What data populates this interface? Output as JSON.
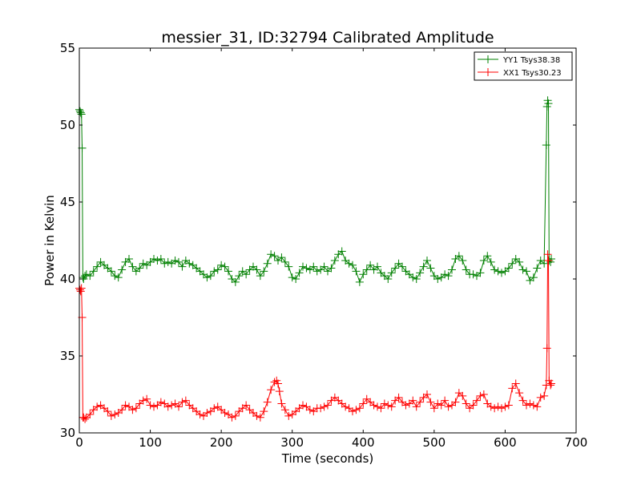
{
  "chart_data": {
    "type": "line",
    "title": "messier_31, ID:32794 Calibrated Amplitude",
    "xlabel": "Time (seconds)",
    "ylabel": "Power in Kelvin",
    "xlim": [
      0,
      700
    ],
    "ylim": [
      30,
      55
    ],
    "xticks": [
      0,
      100,
      200,
      300,
      400,
      500,
      600,
      700
    ],
    "yticks": [
      30,
      35,
      40,
      45,
      50,
      55
    ],
    "grid": false,
    "legend_position": "top-right",
    "marker": "plus",
    "series": [
      {
        "name": "YY1 Tsys38.38",
        "color": "#008000",
        "x": [
          0,
          1,
          2,
          3,
          4,
          5,
          6,
          8,
          10,
          15,
          20,
          25,
          30,
          35,
          40,
          45,
          50,
          55,
          60,
          65,
          70,
          75,
          80,
          85,
          90,
          95,
          100,
          105,
          110,
          115,
          120,
          125,
          130,
          135,
          140,
          145,
          150,
          155,
          160,
          165,
          170,
          175,
          180,
          185,
          190,
          195,
          200,
          205,
          210,
          215,
          220,
          225,
          230,
          235,
          240,
          245,
          250,
          255,
          260,
          265,
          270,
          275,
          280,
          285,
          290,
          295,
          300,
          305,
          310,
          315,
          320,
          325,
          330,
          335,
          340,
          345,
          350,
          355,
          360,
          365,
          370,
          375,
          380,
          385,
          390,
          395,
          400,
          405,
          410,
          415,
          420,
          425,
          430,
          435,
          440,
          445,
          450,
          455,
          460,
          465,
          470,
          475,
          480,
          485,
          490,
          495,
          500,
          505,
          510,
          515,
          520,
          525,
          530,
          535,
          540,
          545,
          550,
          555,
          560,
          565,
          570,
          575,
          580,
          585,
          590,
          595,
          600,
          605,
          610,
          615,
          620,
          625,
          630,
          635,
          640,
          645,
          650,
          655,
          658,
          659,
          660,
          661,
          662,
          664,
          665
        ],
        "y": [
          51.0,
          50.9,
          50.8,
          50.7,
          48.5,
          40.1,
          40.0,
          40.2,
          40.3,
          40.2,
          40.5,
          40.8,
          41.1,
          40.9,
          40.7,
          40.5,
          40.2,
          40.1,
          40.6,
          41.1,
          41.3,
          40.8,
          40.5,
          40.7,
          41.0,
          40.9,
          41.1,
          41.3,
          41.2,
          41.3,
          41.0,
          41.1,
          41.0,
          41.2,
          41.1,
          40.8,
          41.2,
          41.0,
          40.9,
          40.7,
          40.5,
          40.3,
          40.1,
          40.2,
          40.5,
          40.6,
          40.9,
          40.8,
          40.5,
          40.0,
          39.8,
          40.2,
          40.5,
          40.3,
          40.6,
          40.8,
          40.6,
          40.2,
          40.5,
          41.0,
          41.6,
          41.5,
          41.2,
          41.4,
          41.1,
          40.8,
          40.1,
          40.0,
          40.4,
          40.8,
          40.7,
          40.6,
          40.8,
          40.5,
          40.6,
          40.8,
          40.5,
          40.7,
          41.2,
          41.6,
          41.8,
          41.2,
          41.0,
          40.9,
          40.5,
          39.8,
          40.3,
          40.6,
          40.9,
          40.6,
          40.8,
          40.4,
          40.2,
          40.0,
          40.4,
          40.7,
          41.0,
          40.8,
          40.5,
          40.3,
          40.1,
          40.0,
          40.4,
          40.8,
          41.2,
          40.7,
          40.2,
          40.0,
          40.1,
          40.3,
          40.2,
          40.6,
          41.3,
          41.5,
          41.2,
          40.6,
          40.3,
          40.3,
          40.2,
          40.4,
          41.2,
          41.5,
          41.1,
          40.6,
          40.5,
          40.4,
          40.5,
          40.7,
          41.0,
          41.3,
          41.1,
          40.6,
          40.5,
          39.9,
          40.1,
          40.7,
          41.2,
          41.0,
          48.7,
          51.2,
          51.6,
          51.4,
          41.2,
          41.1,
          41.3
        ]
      },
      {
        "name": "XX1 Tsys30.23",
        "color": "#ff0000",
        "x": [
          0,
          1,
          2,
          3,
          4,
          5,
          6,
          8,
          10,
          15,
          20,
          25,
          30,
          35,
          40,
          45,
          50,
          55,
          60,
          65,
          70,
          75,
          80,
          85,
          90,
          95,
          100,
          105,
          110,
          115,
          120,
          125,
          130,
          135,
          140,
          145,
          150,
          155,
          160,
          165,
          170,
          175,
          180,
          185,
          190,
          195,
          200,
          205,
          210,
          215,
          220,
          225,
          230,
          235,
          240,
          245,
          250,
          255,
          260,
          265,
          270,
          275,
          278,
          280,
          282,
          285,
          290,
          295,
          300,
          305,
          310,
          315,
          320,
          325,
          330,
          335,
          340,
          345,
          350,
          355,
          360,
          365,
          370,
          375,
          380,
          385,
          390,
          395,
          400,
          405,
          410,
          415,
          420,
          425,
          430,
          435,
          440,
          445,
          450,
          455,
          460,
          465,
          470,
          475,
          480,
          485,
          490,
          495,
          500,
          505,
          510,
          515,
          520,
          525,
          530,
          535,
          540,
          545,
          550,
          555,
          560,
          565,
          570,
          575,
          580,
          585,
          590,
          595,
          600,
          605,
          610,
          615,
          620,
          625,
          630,
          635,
          640,
          645,
          650,
          655,
          658,
          659,
          660,
          661,
          662,
          664,
          665
        ],
        "y": [
          39.4,
          39.3,
          39.2,
          39.4,
          37.5,
          31.0,
          31.0,
          30.9,
          31.0,
          31.2,
          31.5,
          31.7,
          31.8,
          31.6,
          31.4,
          31.1,
          31.2,
          31.3,
          31.5,
          31.8,
          31.7,
          31.5,
          31.6,
          31.9,
          32.1,
          32.2,
          31.8,
          31.7,
          31.8,
          32.0,
          31.9,
          31.7,
          31.8,
          31.9,
          31.7,
          32.0,
          32.1,
          31.8,
          31.6,
          31.4,
          31.2,
          31.1,
          31.3,
          31.4,
          31.6,
          31.7,
          31.5,
          31.3,
          31.2,
          31.0,
          31.1,
          31.4,
          31.6,
          31.8,
          31.5,
          31.3,
          31.1,
          31.0,
          31.4,
          32.0,
          32.8,
          33.3,
          33.4,
          33.2,
          32.7,
          31.9,
          31.5,
          31.1,
          31.2,
          31.4,
          31.6,
          31.8,
          31.7,
          31.5,
          31.4,
          31.6,
          31.6,
          31.7,
          31.8,
          32.1,
          32.3,
          32.1,
          31.9,
          31.7,
          31.6,
          31.4,
          31.5,
          31.6,
          31.9,
          32.2,
          32.0,
          31.8,
          31.7,
          31.6,
          31.9,
          31.8,
          31.7,
          32.1,
          32.3,
          32.0,
          31.8,
          31.9,
          32.1,
          31.7,
          32.0,
          32.3,
          32.5,
          32.0,
          31.6,
          31.9,
          31.8,
          32.1,
          31.7,
          31.8,
          32.0,
          32.6,
          32.4,
          31.9,
          31.6,
          31.8,
          32.1,
          32.4,
          32.5,
          31.9,
          31.7,
          31.6,
          31.7,
          31.6,
          31.7,
          31.8,
          32.9,
          33.2,
          32.6,
          32.1,
          31.8,
          31.9,
          31.8,
          31.7,
          32.3,
          32.4,
          33.1,
          35.5,
          41.6,
          41.2,
          33.4,
          33.1,
          33.2
        ]
      }
    ]
  }
}
